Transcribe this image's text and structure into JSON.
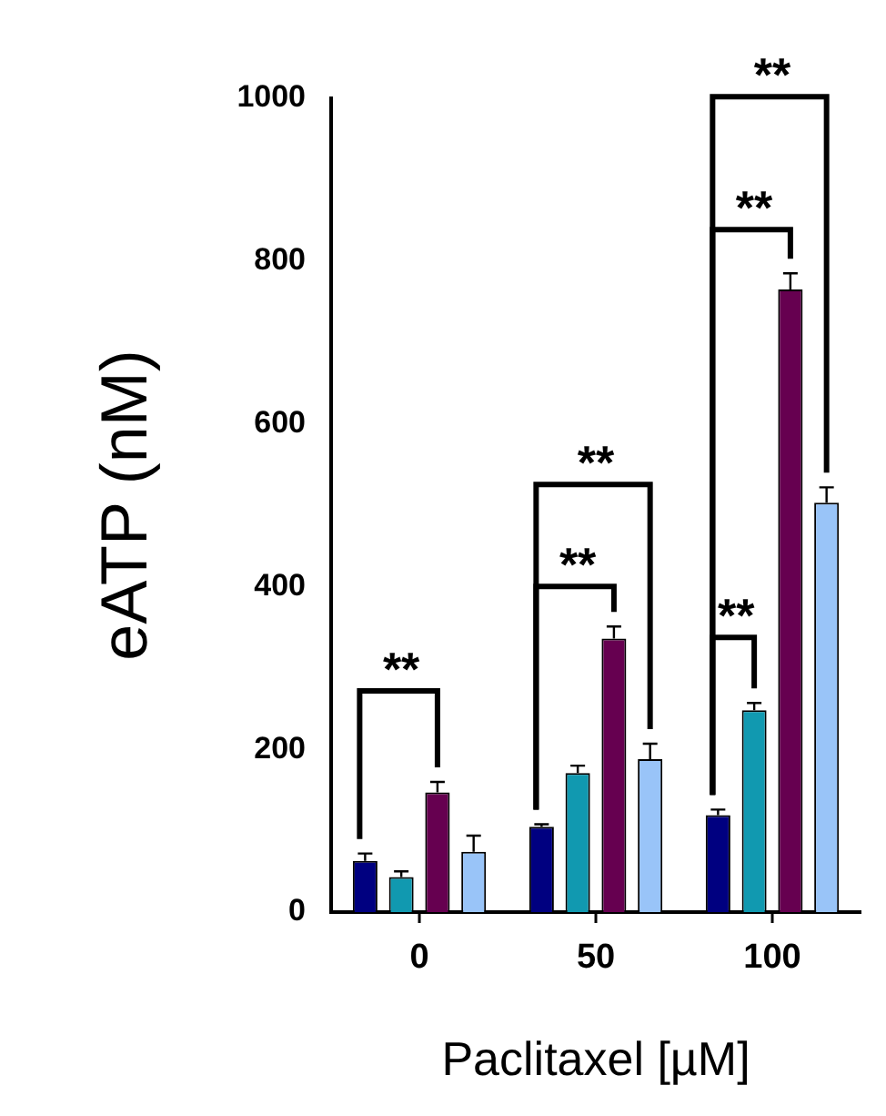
{
  "chart_data": {
    "type": "bar",
    "xlabel": "Paclitaxel [µM]",
    "ylabel": "eATP (nM)",
    "categories": [
      "0",
      "50",
      "100"
    ],
    "series": [
      {
        "color": "#000080",
        "values": [
          63,
          105,
          119
        ],
        "errors": [
          9,
          3,
          7
        ]
      },
      {
        "color": "#1199b0",
        "values": [
          43,
          171,
          248
        ],
        "errors": [
          7,
          9,
          9
        ]
      },
      {
        "color": "#660050",
        "values": [
          147,
          336,
          765
        ],
        "errors": [
          13,
          15,
          20
        ]
      },
      {
        "color": "#99c4f8",
        "values": [
          74,
          188,
          503
        ],
        "errors": [
          20,
          19,
          19
        ]
      }
    ],
    "ylim": [
      0,
      1000
    ],
    "yticks": [
      0,
      200,
      400,
      600,
      800,
      1000
    ],
    "grid": false,
    "legend": false,
    "annotations": [
      "**",
      "**",
      "**",
      "**",
      "**",
      "**"
    ]
  }
}
